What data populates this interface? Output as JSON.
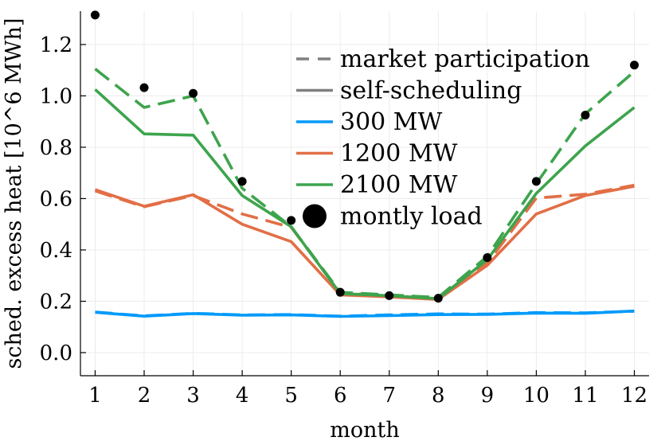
{
  "chart_data": {
    "type": "line",
    "title": "",
    "xlabel": "month",
    "ylabel": "sched. excess heat [10^6 MWh]",
    "xlim": [
      0.7,
      12.3
    ],
    "ylim": [
      -0.09,
      1.33
    ],
    "grid": true,
    "legend_position": "top-right",
    "x": [
      1,
      2,
      3,
      4,
      5,
      6,
      7,
      8,
      9,
      10,
      11,
      12
    ],
    "x_ticks": [
      "1",
      "2",
      "3",
      "4",
      "5",
      "6",
      "7",
      "8",
      "9",
      "10",
      "11",
      "12"
    ],
    "y_ticks": [
      "0.0",
      "0.2",
      "0.4",
      "0.6",
      "0.8",
      "1.0",
      "1.2"
    ],
    "y_tick_values": [
      0.0,
      0.2,
      0.4,
      0.6,
      0.8,
      1.0,
      1.2
    ],
    "legend_style_entries": [
      {
        "label": "market participation",
        "style": "dashed",
        "color": "#808080"
      },
      {
        "label": "self-scheduling",
        "style": "solid",
        "color": "#808080"
      }
    ],
    "series": [
      {
        "name": "300 MW",
        "color": "#009AFA",
        "style": "solid",
        "in_legend": true,
        "values": [
          0.157,
          0.142,
          0.152,
          0.146,
          0.147,
          0.141,
          0.144,
          0.148,
          0.149,
          0.154,
          0.153,
          0.162
        ]
      },
      {
        "name": "300 MW",
        "color": "#009AFA",
        "style": "dashed",
        "in_legend": false,
        "values": [
          0.158,
          0.143,
          0.153,
          0.147,
          0.148,
          0.142,
          0.147,
          0.151,
          0.15,
          0.156,
          0.155,
          0.161
        ]
      },
      {
        "name": "1200 MW",
        "color": "#E26F46",
        "style": "solid",
        "in_legend": true,
        "values": [
          0.635,
          0.57,
          0.615,
          0.5,
          0.432,
          0.225,
          0.217,
          0.207,
          0.34,
          0.54,
          0.612,
          0.648
        ]
      },
      {
        "name": "1200 MW",
        "color": "#E26F46",
        "style": "dashed",
        "in_legend": false,
        "values": [
          0.63,
          0.568,
          0.612,
          0.54,
          0.488,
          0.232,
          0.222,
          0.21,
          0.348,
          0.602,
          0.617,
          0.652
        ]
      },
      {
        "name": "2100 MW",
        "color": "#3DA44D",
        "style": "solid",
        "in_legend": true,
        "values": [
          1.025,
          0.852,
          0.847,
          0.612,
          0.49,
          0.23,
          0.222,
          0.21,
          0.362,
          0.62,
          0.805,
          0.955
        ]
      },
      {
        "name": "2100 MW",
        "color": "#3DA44D",
        "style": "dashed",
        "in_legend": false,
        "values": [
          1.105,
          0.955,
          1.0,
          0.64,
          0.49,
          0.235,
          0.225,
          0.215,
          0.375,
          0.658,
          0.93,
          1.095
        ]
      },
      {
        "name": "montly load",
        "color": "#000000",
        "style": "markers",
        "in_legend": true,
        "values": [
          1.315,
          1.032,
          1.01,
          0.667,
          0.515,
          0.235,
          0.222,
          0.212,
          0.37,
          0.667,
          0.925,
          1.12
        ]
      }
    ]
  }
}
